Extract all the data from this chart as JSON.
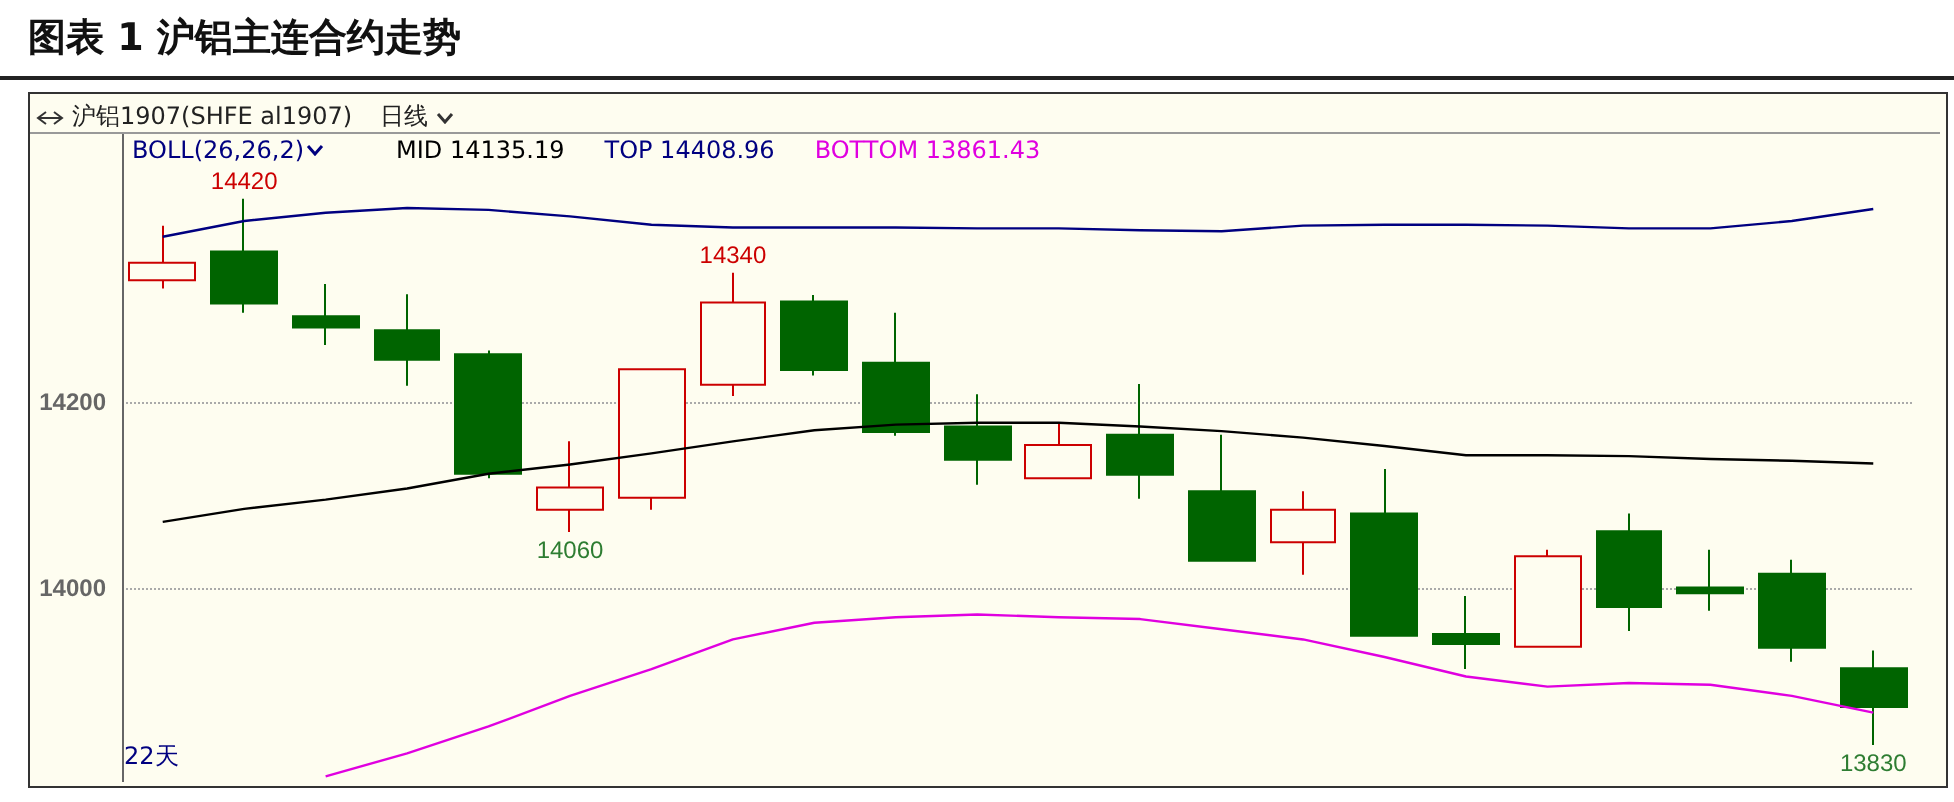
{
  "chart_data": {
    "type": "candlestick",
    "title": "图表 1 沪铝主连合约走势",
    "subtitle": "沪铝1907(SHFE al1907)",
    "annotations": [
      "日线",
      "BOLL(26,26,2)",
      "22天",
      {
        "text": "14420",
        "y": 14420
      },
      {
        "text": "14340",
        "y": 14340
      },
      {
        "text": "14060",
        "y": 14060
      },
      {
        "text": "13830",
        "y": 13830
      }
    ],
    "categories": [
      null,
      null,
      null,
      null,
      null,
      null,
      null,
      null,
      null,
      null,
      null,
      null,
      null,
      null,
      null,
      null,
      null,
      null,
      null,
      null,
      null,
      null
    ],
    "ohlc": [
      [
        14332,
        14391,
        14323,
        14351
      ],
      [
        14363,
        14420,
        14297,
        14307
      ],
      [
        14293,
        14328,
        14262,
        14281
      ],
      [
        14278,
        14317,
        14218,
        14246
      ],
      [
        14252,
        14256,
        14118,
        14123
      ],
      [
        14084,
        14158,
        14060,
        14108
      ],
      [
        14097,
        14236,
        14084,
        14236
      ],
      [
        14219,
        14340,
        14207,
        14308
      ],
      [
        14309,
        14316,
        14229,
        14235
      ],
      [
        14243,
        14297,
        14164,
        14168
      ],
      [
        14174,
        14209,
        14111,
        14138
      ],
      [
        14118,
        14179,
        14118,
        14154
      ],
      [
        14165,
        14220,
        14096,
        14122
      ],
      [
        14104,
        14165,
        14029,
        14029
      ],
      [
        14049,
        14104,
        14014,
        14084
      ],
      [
        14080,
        14128,
        13948,
        13948
      ],
      [
        13950,
        13991,
        13912,
        13939
      ],
      [
        13936,
        14041,
        13936,
        14034
      ],
      [
        14061,
        14080,
        13953,
        13979
      ],
      [
        14000,
        14041,
        13975,
        13994
      ],
      [
        14015,
        14030,
        13920,
        13935
      ],
      [
        13913,
        13932,
        13830,
        13871
      ]
    ],
    "colors": [
      "#cc0000",
      "#006400",
      "#006400",
      "#006400",
      "#006400",
      "#cc0000",
      "#cc0000",
      "#cc0000",
      "#006400",
      "#006400",
      "#006400",
      "#cc0000",
      "#006400",
      "#006400",
      "#cc0000",
      "#006400",
      "#006400",
      "#cc0000",
      "#006400",
      "#006400",
      "#006400",
      "#006400"
    ],
    "series": [
      {
        "name": "MID 14135.19",
        "type": "line",
        "color": "#000000",
        "values": [
          14071,
          14085,
          14095,
          14107,
          14123,
          14133,
          14145,
          14158,
          14170,
          14176,
          14178,
          14178,
          14174,
          14169,
          14162,
          14153,
          14143,
          14143,
          14142,
          14139,
          14137,
          14134
        ]
      },
      {
        "name": "TOP 14408.96",
        "type": "line",
        "color": "#000080",
        "values": [
          14379,
          14396,
          14405,
          14410,
          14408,
          14401,
          14392,
          14389,
          14389,
          14389,
          14388,
          14388,
          14386,
          14385,
          14391,
          14392,
          14392,
          14391,
          14388,
          14388,
          14396,
          14409
        ]
      },
      {
        "name": "BOTTOM 13861.43",
        "type": "line",
        "color": "#e000e0",
        "values": [
          null,
          null,
          13796,
          13821,
          13850,
          13883,
          13912,
          13944,
          13962,
          13968,
          13971,
          13968,
          13966,
          13955,
          13944,
          13925,
          13904,
          13893,
          13897,
          13895,
          13883,
          13865
        ]
      }
    ],
    "ylim": [
      13790,
      14490
    ],
    "yticks": [
      14000,
      14200
    ],
    "grid": "y",
    "legend": "top left",
    "tick_labels": "y"
  }
}
